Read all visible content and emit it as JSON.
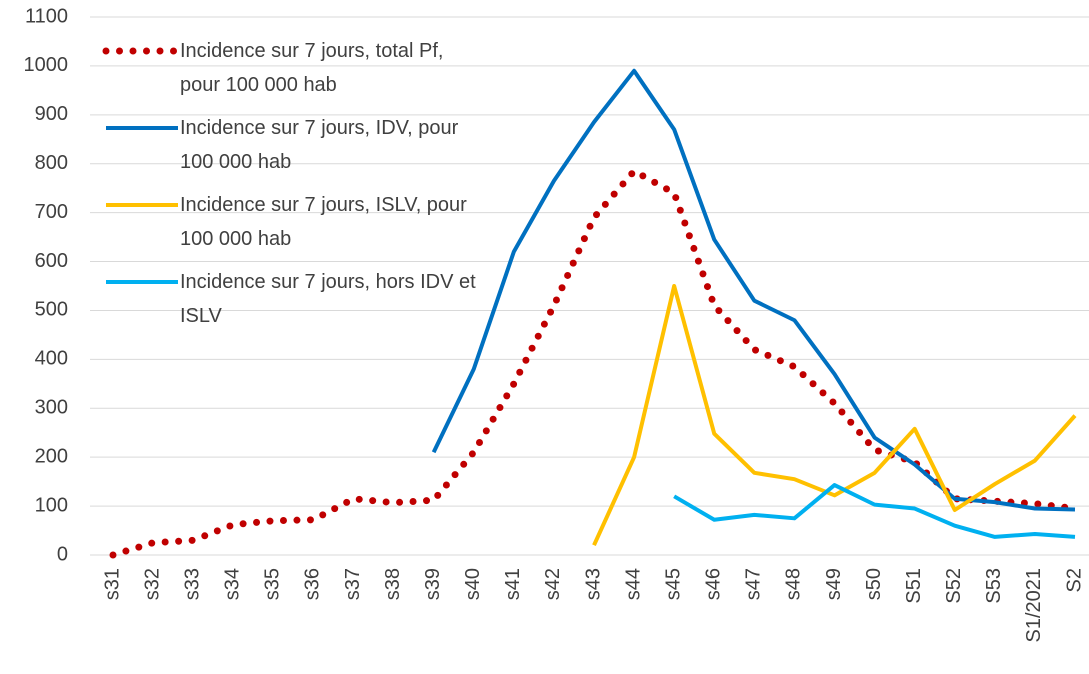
{
  "chart_data": {
    "type": "line",
    "categories": [
      "s31",
      "s32",
      "s33",
      "s34",
      "s35",
      "s36",
      "s37",
      "s38",
      "s39",
      "s40",
      "s41",
      "s42",
      "s43",
      "s44",
      "s45",
      "s46",
      "s47",
      "s48",
      "s49",
      "s50",
      "S51",
      "S52",
      "S53",
      "S1/2021",
      "S2"
    ],
    "series": [
      {
        "name": "Incidence sur 7 jours, total Pf, pour 100 000 hab",
        "color": "#c00000",
        "style": "dotted",
        "values": [
          0,
          25,
          30,
          62,
          70,
          72,
          115,
          107,
          112,
          210,
          350,
          510,
          690,
          785,
          740,
          510,
          420,
          385,
          310,
          215,
          190,
          115,
          110,
          105,
          95
        ]
      },
      {
        "name": "Incidence sur 7 jours, IDV, pour 100 000 hab",
        "color": "#0070c0",
        "style": "solid",
        "values": [
          null,
          null,
          null,
          null,
          null,
          null,
          null,
          null,
          210,
          380,
          620,
          765,
          885,
          990,
          870,
          645,
          520,
          480,
          370,
          240,
          185,
          115,
          108,
          95,
          93
        ]
      },
      {
        "name": "Incidence sur 7 jours, ISLV, pour 100 000 hab",
        "color": "#ffc000",
        "style": "solid",
        "values": [
          null,
          null,
          null,
          null,
          null,
          null,
          null,
          null,
          null,
          null,
          null,
          null,
          20,
          200,
          550,
          248,
          168,
          155,
          122,
          168,
          258,
          92,
          145,
          193,
          285
        ]
      },
      {
        "name": "Incidence sur 7 jours, hors IDV et ISLV",
        "color": "#00b0f0",
        "style": "solid",
        "values": [
          null,
          null,
          null,
          null,
          null,
          null,
          null,
          null,
          null,
          null,
          null,
          null,
          null,
          null,
          120,
          72,
          82,
          75,
          143,
          103,
          95,
          60,
          37,
          43,
          37
        ]
      }
    ],
    "ylim": [
      0,
      1100
    ],
    "yticks": [
      0,
      100,
      200,
      300,
      400,
      500,
      600,
      700,
      800,
      900,
      1000,
      1100
    ],
    "grid": true
  }
}
